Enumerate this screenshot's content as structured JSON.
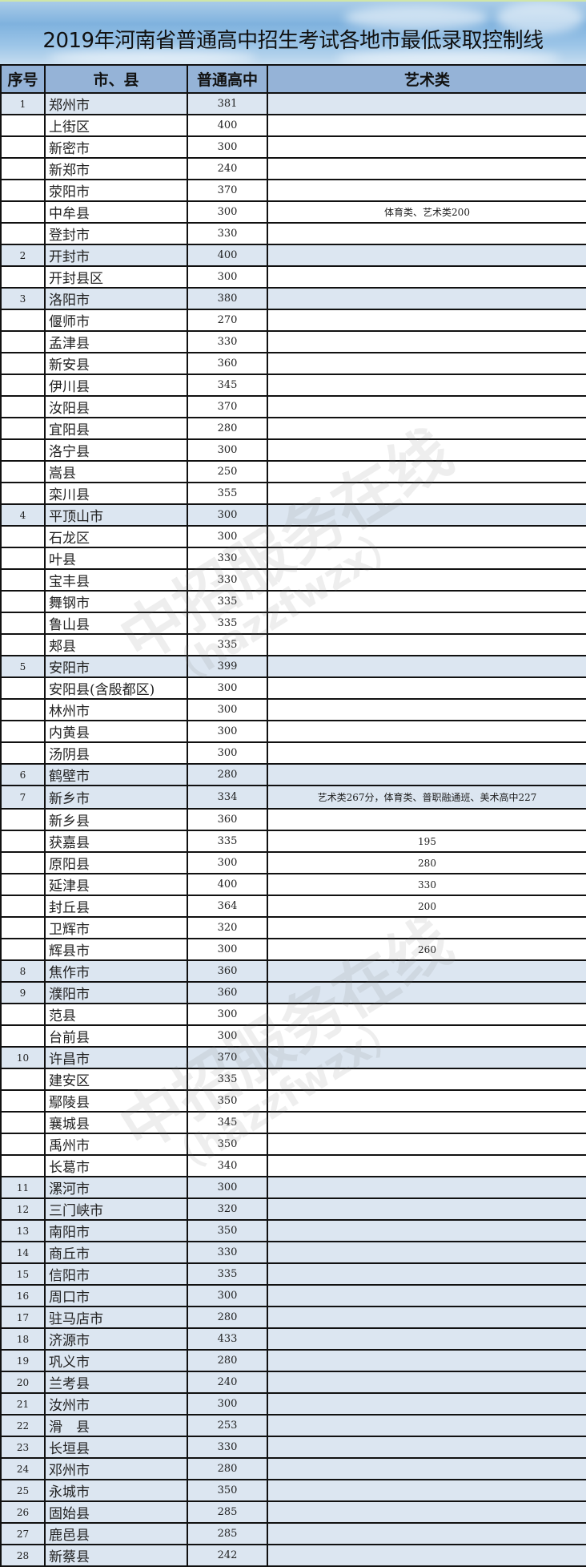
{
  "title": "2019年河南省普通高中招生考试各地市最低录取控制线",
  "headers": {
    "no": "序号",
    "city": "市、县",
    "score": "普通高中",
    "art": "艺术类"
  },
  "watermark": {
    "text": "中招服务在线",
    "sub": "（hazzfwzx）"
  },
  "colors": {
    "header_bg": "#95b3d7",
    "main_row_bg": "#dce6f1",
    "sub_row_bg": "#ffffff"
  },
  "rows": [
    {
      "no": "1",
      "city": "郑州市",
      "score": "381",
      "art": ""
    },
    {
      "no": "",
      "city": "上街区",
      "score": "400",
      "art": ""
    },
    {
      "no": "",
      "city": "新密市",
      "score": "300",
      "art": ""
    },
    {
      "no": "",
      "city": "新郑市",
      "score": "240",
      "art": ""
    },
    {
      "no": "",
      "city": "荥阳市",
      "score": "370",
      "art": ""
    },
    {
      "no": "",
      "city": "中牟县",
      "score": "300",
      "art": "体育类、艺术类200"
    },
    {
      "no": "",
      "city": "登封市",
      "score": "330",
      "art": ""
    },
    {
      "no": "2",
      "city": "开封市",
      "score": "400",
      "art": ""
    },
    {
      "no": "",
      "city": "开封县区",
      "score": "300",
      "art": ""
    },
    {
      "no": "3",
      "city": "洛阳市",
      "score": "380",
      "art": ""
    },
    {
      "no": "",
      "city": "偃师市",
      "score": "270",
      "art": ""
    },
    {
      "no": "",
      "city": "孟津县",
      "score": "330",
      "art": ""
    },
    {
      "no": "",
      "city": "新安县",
      "score": "360",
      "art": ""
    },
    {
      "no": "",
      "city": "伊川县",
      "score": "345",
      "art": ""
    },
    {
      "no": "",
      "city": "汝阳县",
      "score": "370",
      "art": ""
    },
    {
      "no": "",
      "city": "宜阳县",
      "score": "280",
      "art": ""
    },
    {
      "no": "",
      "city": "洛宁县",
      "score": "300",
      "art": ""
    },
    {
      "no": "",
      "city": "嵩县",
      "score": "250",
      "art": ""
    },
    {
      "no": "",
      "city": "栾川县",
      "score": "355",
      "art": ""
    },
    {
      "no": "4",
      "city": "平顶山市",
      "score": "300",
      "art": ""
    },
    {
      "no": "",
      "city": "石龙区",
      "score": "300",
      "art": ""
    },
    {
      "no": "",
      "city": "叶县",
      "score": "330",
      "art": ""
    },
    {
      "no": "",
      "city": "宝丰县",
      "score": "330",
      "art": ""
    },
    {
      "no": "",
      "city": "舞钢市",
      "score": "335",
      "art": ""
    },
    {
      "no": "",
      "city": "鲁山县",
      "score": "335",
      "art": ""
    },
    {
      "no": "",
      "city": "郏县",
      "score": "335",
      "art": ""
    },
    {
      "no": "5",
      "city": "安阳市",
      "score": "399",
      "art": ""
    },
    {
      "no": "",
      "city": "安阳县(含殷都区)",
      "score": "300",
      "art": ""
    },
    {
      "no": "",
      "city": "林州市",
      "score": "300",
      "art": ""
    },
    {
      "no": "",
      "city": "内黄县",
      "score": "300",
      "art": ""
    },
    {
      "no": "",
      "city": "汤阴县",
      "score": "300",
      "art": ""
    },
    {
      "no": "6",
      "city": "鹤壁市",
      "score": "280",
      "art": ""
    },
    {
      "no": "7",
      "city": "新乡市",
      "score": "334",
      "art": "艺术类267分，体育类、普职融通班、美术高中227"
    },
    {
      "no": "",
      "city": "新乡县",
      "score": "360",
      "art": ""
    },
    {
      "no": "",
      "city": "获嘉县",
      "score": "335",
      "art": "195"
    },
    {
      "no": "",
      "city": "原阳县",
      "score": "300",
      "art": "280"
    },
    {
      "no": "",
      "city": "延津县",
      "score": "400",
      "art": "330"
    },
    {
      "no": "",
      "city": "封丘县",
      "score": "364",
      "art": "200"
    },
    {
      "no": "",
      "city": "卫辉市",
      "score": "320",
      "art": ""
    },
    {
      "no": "",
      "city": "辉县市",
      "score": "300",
      "art": "260"
    },
    {
      "no": "8",
      "city": "焦作市",
      "score": "360",
      "art": ""
    },
    {
      "no": "9",
      "city": "濮阳市",
      "score": "360",
      "art": ""
    },
    {
      "no": "",
      "city": "范县",
      "score": "300",
      "art": ""
    },
    {
      "no": "",
      "city": "台前县",
      "score": "300",
      "art": ""
    },
    {
      "no": "10",
      "city": "许昌市",
      "score": "370",
      "art": ""
    },
    {
      "no": "",
      "city": "建安区",
      "score": "335",
      "art": ""
    },
    {
      "no": "",
      "city": "鄢陵县",
      "score": "350",
      "art": ""
    },
    {
      "no": "",
      "city": "襄城县",
      "score": "345",
      "art": ""
    },
    {
      "no": "",
      "city": "禹州市",
      "score": "350",
      "art": ""
    },
    {
      "no": "",
      "city": "长葛市",
      "score": "340",
      "art": ""
    },
    {
      "no": "11",
      "city": "漯河市",
      "score": "300",
      "art": ""
    },
    {
      "no": "12",
      "city": "三门峡市",
      "score": "320",
      "art": ""
    },
    {
      "no": "13",
      "city": "南阳市",
      "score": "350",
      "art": ""
    },
    {
      "no": "14",
      "city": "商丘市",
      "score": "330",
      "art": ""
    },
    {
      "no": "15",
      "city": "信阳市",
      "score": "335",
      "art": ""
    },
    {
      "no": "16",
      "city": "周口市",
      "score": "300",
      "art": ""
    },
    {
      "no": "17",
      "city": "驻马店市",
      "score": "280",
      "art": ""
    },
    {
      "no": "18",
      "city": "济源市",
      "score": "433",
      "art": ""
    },
    {
      "no": "19",
      "city": "巩义市",
      "score": "280",
      "art": ""
    },
    {
      "no": "20",
      "city": "兰考县",
      "score": "240",
      "art": ""
    },
    {
      "no": "21",
      "city": "汝州市",
      "score": "300",
      "art": ""
    },
    {
      "no": "22",
      "city": "滑　县",
      "score": "253",
      "art": ""
    },
    {
      "no": "23",
      "city": "长垣县",
      "score": "330",
      "art": ""
    },
    {
      "no": "24",
      "city": "邓州市",
      "score": "280",
      "art": ""
    },
    {
      "no": "25",
      "city": "永城市",
      "score": "350",
      "art": ""
    },
    {
      "no": "26",
      "city": "固始县",
      "score": "285",
      "art": ""
    },
    {
      "no": "27",
      "city": "鹿邑县",
      "score": "285",
      "art": ""
    },
    {
      "no": "28",
      "city": "新蔡县",
      "score": "242",
      "art": ""
    }
  ]
}
